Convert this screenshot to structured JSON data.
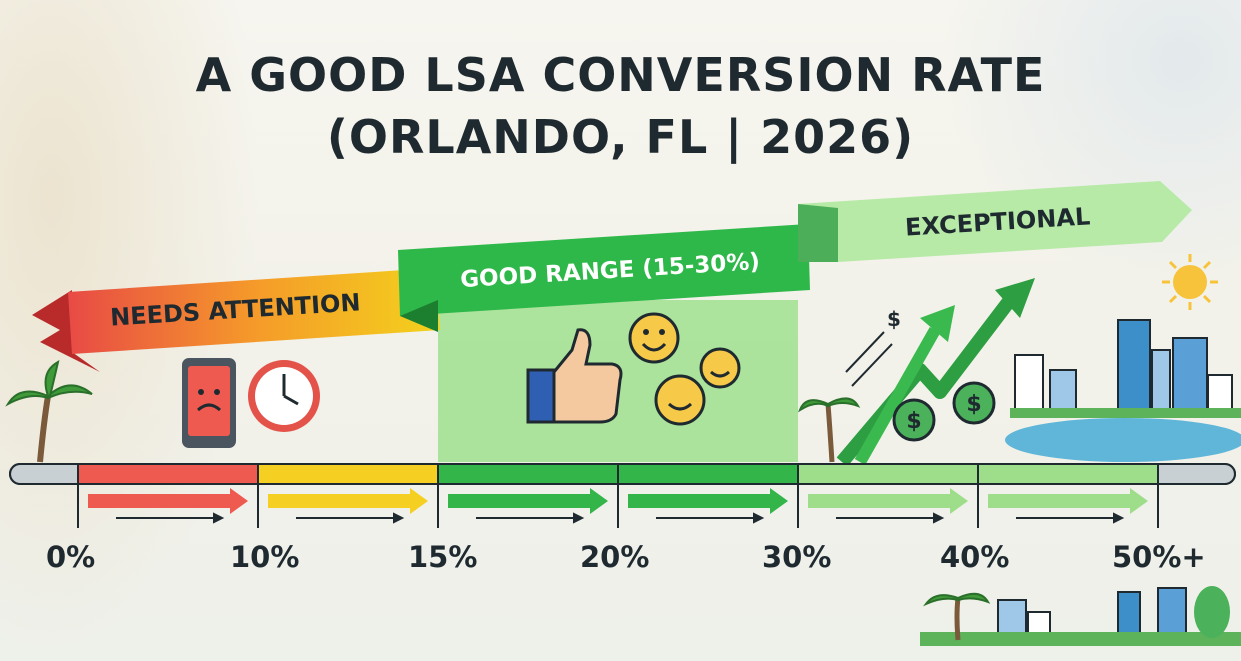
{
  "title": {
    "line1": "A GOOD LSA CONVERSION RATE",
    "line2": "(ORLANDO, FL | 2026)"
  },
  "zones": [
    {
      "label": "NEEDS ATTENTION",
      "color": "#e84a45",
      "color2": "#f3d21c"
    },
    {
      "label": "GOOD RANGE (15-30%)",
      "color": "#2fb84a"
    },
    {
      "label": "EXCEPTIONAL",
      "color": "#8fdc7c"
    }
  ],
  "scale": {
    "ticks": [
      "0%",
      "10%",
      "15%",
      "20%",
      "30%",
      "40%",
      "50%+"
    ]
  },
  "icons": {
    "sad": "sad-phone-icon",
    "clock": "clock-icon",
    "thumbs": "thumbs-up-icon",
    "smiles": "smiley-icon",
    "growth": "growth-arrow-icon",
    "money": "dollar-coin-icon",
    "dollar_sign": "$"
  }
}
